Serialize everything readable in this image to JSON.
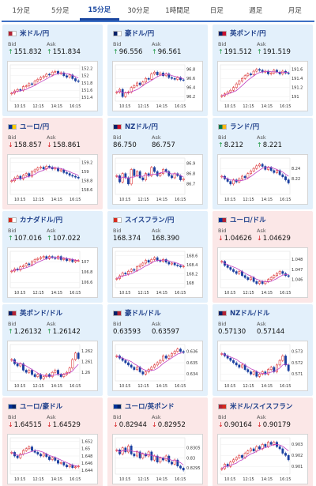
{
  "tabs": [
    {
      "label": "1分足",
      "active": false
    },
    {
      "label": "5分足",
      "active": false
    },
    {
      "label": "15分足",
      "active": true
    },
    {
      "label": "30分足",
      "active": false
    },
    {
      "label": "1時間足",
      "active": false
    },
    {
      "label": "日足",
      "active": false
    },
    {
      "label": "週足",
      "active": false
    },
    {
      "label": "月足",
      "active": false
    }
  ],
  "labels": {
    "bid": "Bid",
    "ask": "Ask"
  },
  "colors": {
    "up": "#1a9641",
    "down": "#d7191c",
    "up_bg": "#e3f0fb",
    "down_bg": "#fbe7e7",
    "ma": "#c040c0"
  },
  "cards": [
    {
      "title": "米ドル/円",
      "flag": [
        "#b22234",
        "#ffffff"
      ],
      "bid": "151.832",
      "ask": "151.834",
      "dir": "up",
      "chart": {
        "x_ticks": [
          "10:15",
          "12:15",
          "14:15",
          "16:15"
        ],
        "y_ticks": [
          "152.2",
          "152",
          "151.8",
          "151.6",
          "151.4"
        ],
        "ylim": [
          151.3,
          152.3
        ],
        "closes": [
          151.52,
          151.58,
          151.62,
          151.6,
          151.7,
          151.72,
          151.78,
          151.76,
          151.85,
          151.9,
          151.95,
          151.98,
          152.04,
          152.02,
          152.1,
          152.12,
          152.06,
          152.08,
          152.0,
          151.96,
          152.02,
          151.92,
          151.86,
          151.84
        ]
      }
    },
    {
      "title": "豪ドル/円",
      "flag": [
        "#012169",
        "#ffffff"
      ],
      "bid": "96.556",
      "ask": "96.561",
      "dir": "up",
      "chart": {
        "x_ticks": [
          "10:15",
          "12:15",
          "14:15",
          "16:15"
        ],
        "y_ticks": [
          "96.8",
          "96.6",
          "96.4",
          "96.2"
        ],
        "ylim": [
          96.1,
          96.9
        ],
        "closes": [
          96.3,
          96.36,
          96.2,
          96.28,
          96.3,
          96.4,
          96.44,
          96.5,
          96.46,
          96.52,
          96.6,
          96.58,
          96.7,
          96.74,
          96.68,
          96.72,
          96.66,
          96.7,
          96.62,
          96.6,
          96.58,
          96.62,
          96.57,
          96.56
        ]
      }
    },
    {
      "title": "英ポンド/円",
      "flag": [
        "#012169",
        "#c8102e"
      ],
      "bid": "191.512",
      "ask": "191.519",
      "dir": "up",
      "chart": {
        "x_ticks": [
          "10:15",
          "12:15",
          "14:15",
          "16:15"
        ],
        "y_ticks": [
          "191.6",
          "191.4",
          "191.2",
          "191"
        ],
        "ylim": [
          190.9,
          191.7
        ],
        "closes": [
          191.02,
          191.06,
          191.1,
          191.14,
          191.2,
          191.28,
          191.34,
          191.4,
          191.46,
          191.5,
          191.48,
          191.56,
          191.6,
          191.58,
          191.54,
          191.56,
          191.5,
          191.52,
          191.58,
          191.54,
          191.5,
          191.56,
          191.52,
          191.51
        ]
      }
    },
    {
      "title": "ユーロ/円",
      "flag": [
        "#003399",
        "#ffcc00"
      ],
      "bid": "158.857",
      "ask": "158.861",
      "dir": "down",
      "chart": {
        "x_ticks": [
          "10:15",
          "12:15",
          "14:15",
          "16:15"
        ],
        "y_ticks": [
          "159.2",
          "159",
          "158.8",
          "158.6"
        ],
        "ylim": [
          158.5,
          159.3
        ],
        "closes": [
          158.8,
          158.86,
          158.9,
          158.84,
          158.92,
          158.96,
          158.9,
          159.0,
          159.04,
          159.08,
          159.1,
          159.06,
          159.12,
          159.1,
          159.06,
          159.08,
          159.02,
          159.04,
          158.98,
          158.96,
          158.92,
          158.9,
          158.88,
          158.86
        ]
      }
    },
    {
      "title": "NZドル/円",
      "flag": [
        "#012169",
        "#cc142b"
      ],
      "bid": "86.750",
      "ask": "86.757",
      "dir": "none",
      "chart": {
        "x_ticks": [
          "10:15",
          "12:15",
          "14:15",
          "16:15"
        ],
        "y_ticks": [
          "86.9",
          "86.8",
          "86.7"
        ],
        "ylim": [
          86.6,
          86.95
        ],
        "closes": [
          86.78,
          86.72,
          86.8,
          86.76,
          86.7,
          86.84,
          86.78,
          86.82,
          86.76,
          86.74,
          86.8,
          86.78,
          86.86,
          86.82,
          86.78,
          86.8,
          86.84,
          86.82,
          86.78,
          86.76,
          86.8,
          86.78,
          86.74,
          86.75
        ]
      }
    },
    {
      "title": "ランド/円",
      "flag": [
        "#007a4d",
        "#ffb612"
      ],
      "bid": "8.212",
      "ask": "8.221",
      "dir": "up",
      "chart": {
        "x_ticks": [
          "10:15",
          "12:15",
          "14:15",
          "16:15"
        ],
        "y_ticks": [
          "8.24",
          "8.22"
        ],
        "ylim": [
          8.19,
          8.26
        ],
        "closes": [
          8.225,
          8.22,
          8.215,
          8.21,
          8.218,
          8.214,
          8.22,
          8.225,
          8.222,
          8.23,
          8.235,
          8.24,
          8.245,
          8.248,
          8.244,
          8.238,
          8.242,
          8.236,
          8.232,
          8.236,
          8.228,
          8.224,
          8.218,
          8.212
        ]
      }
    },
    {
      "title": "カナダドル/円",
      "flag": [
        "#d52b1e",
        "#ffffff"
      ],
      "bid": "107.016",
      "ask": "107.022",
      "dir": "up",
      "chart": {
        "x_ticks": [
          "10:15",
          "12:15",
          "14:15",
          "16:15"
        ],
        "y_ticks": [
          "107",
          "106.8",
          "106.6"
        ],
        "ylim": [
          106.5,
          107.2
        ],
        "closes": [
          106.82,
          106.86,
          106.84,
          106.9,
          106.92,
          106.96,
          106.94,
          107.0,
          107.04,
          107.06,
          107.08,
          107.1,
          107.06,
          107.1,
          107.08,
          107.06,
          107.1,
          107.04,
          107.06,
          107.02,
          107.04,
          107.0,
          107.02,
          107.02
        ]
      }
    },
    {
      "title": "スイスフラン/円",
      "flag": [
        "#d52b1e",
        "#ffffff"
      ],
      "bid": "168.374",
      "ask": "168.390",
      "dir": "none",
      "chart": {
        "x_ticks": [
          "10:15",
          "12:15",
          "14:15",
          "16:15"
        ],
        "y_ticks": [
          "168.6",
          "168.4",
          "168.2",
          "168"
        ],
        "ylim": [
          167.9,
          168.7
        ],
        "closes": [
          168.1,
          168.16,
          168.22,
          168.2,
          168.26,
          168.3,
          168.28,
          168.36,
          168.4,
          168.44,
          168.5,
          168.46,
          168.52,
          168.56,
          168.5,
          168.48,
          168.52,
          168.46,
          168.42,
          168.44,
          168.4,
          168.38,
          168.36,
          168.37
        ]
      }
    },
    {
      "title": "ユーロ/ドル",
      "flag": [
        "#003399",
        "#b22234"
      ],
      "bid": "1.04626",
      "ask": "1.04629",
      "dir": "down",
      "chart": {
        "x_ticks": [
          "10:15",
          "12:15",
          "14:15",
          "16:15"
        ],
        "y_ticks": [
          "1.048",
          "1.047",
          "1.046"
        ],
        "ylim": [
          1.0452,
          1.0488
        ],
        "closes": [
          1.0478,
          1.0474,
          1.0472,
          1.047,
          1.0468,
          1.0466,
          1.0468,
          1.0464,
          1.0462,
          1.046,
          1.0462,
          1.0458,
          1.0456,
          1.0458,
          1.0456,
          1.0458,
          1.046,
          1.0462,
          1.0464,
          1.0466,
          1.0468,
          1.0466,
          1.0464,
          1.0463
        ]
      }
    },
    {
      "title": "英ポンド/ドル",
      "flag": [
        "#012169",
        "#b22234"
      ],
      "bid": "1.26132",
      "ask": "1.26142",
      "dir": "up",
      "chart": {
        "x_ticks": [
          "10:15",
          "12:15",
          "14:15",
          "16:15"
        ],
        "y_ticks": [
          "1.262",
          "1.261",
          "1.26"
        ],
        "ylim": [
          1.2592,
          1.2626
        ],
        "closes": [
          1.2612,
          1.2608,
          1.2606,
          1.2608,
          1.2602,
          1.26,
          1.2602,
          1.2598,
          1.2596,
          1.2598,
          1.2594,
          1.2596,
          1.2598,
          1.2596,
          1.26,
          1.2602,
          1.2598,
          1.2596,
          1.2598,
          1.26,
          1.2604,
          1.2612,
          1.2618,
          1.2613
        ]
      }
    },
    {
      "title": "豪ドル/ドル",
      "flag": [
        "#012169",
        "#b22234"
      ],
      "bid": "0.63593",
      "ask": "0.63597",
      "dir": "none",
      "chart": {
        "x_ticks": [
          "10:15",
          "12:15",
          "14:15",
          "16:15"
        ],
        "y_ticks": [
          "0.636",
          "0.635",
          "0.634"
        ],
        "ylim": [
          0.6334,
          0.6366
        ],
        "closes": [
          0.6356,
          0.6354,
          0.6352,
          0.635,
          0.6348,
          0.6346,
          0.6344,
          0.6346,
          0.6342,
          0.634,
          0.6342,
          0.6344,
          0.6346,
          0.6348,
          0.635,
          0.6352,
          0.6356,
          0.6354,
          0.6356,
          0.6358,
          0.636,
          0.6362,
          0.636,
          0.6359
        ]
      }
    },
    {
      "title": "NZドル/ドル",
      "flag": [
        "#012169",
        "#b22234"
      ],
      "bid": "0.57130",
      "ask": "0.57144",
      "dir": "none",
      "chart": {
        "x_ticks": [
          "10:15",
          "12:15",
          "14:15",
          "16:15"
        ],
        "y_ticks": [
          "0.573",
          "0.572",
          "0.571"
        ],
        "ylim": [
          0.5704,
          0.5736
        ],
        "closes": [
          0.5728,
          0.5726,
          0.5724,
          0.5722,
          0.572,
          0.5718,
          0.5716,
          0.5718,
          0.5714,
          0.5712,
          0.571,
          0.5712,
          0.5708,
          0.571,
          0.5712,
          0.571,
          0.5714,
          0.5716,
          0.5712,
          0.5718,
          0.5722,
          0.5726,
          0.5718,
          0.5713
        ]
      }
    },
    {
      "title": "ユーロ/豪ドル",
      "flag": [
        "#003399",
        "#012169"
      ],
      "bid": "1.64515",
      "ask": "1.64529",
      "dir": "down",
      "chart": {
        "x_ticks": [
          "10:15",
          "12:15",
          "14:15",
          "16:15"
        ],
        "y_ticks": [
          "1.652",
          "1.65",
          "1.648",
          "1.646",
          "1.644"
        ],
        "ylim": [
          1.643,
          1.653
        ],
        "closes": [
          1.649,
          1.648,
          1.6475,
          1.6485,
          1.6495,
          1.65,
          1.6505,
          1.6495,
          1.649,
          1.6485,
          1.648,
          1.6485,
          1.6478,
          1.647,
          1.6475,
          1.6468,
          1.646,
          1.6462,
          1.6455,
          1.645,
          1.6455,
          1.6448,
          1.645,
          1.6452
        ]
      }
    },
    {
      "title": "ユーロ/英ポンド",
      "flag": [
        "#003399",
        "#012169"
      ],
      "bid": "0.82944",
      "ask": "0.82952",
      "dir": "down",
      "chart": {
        "x_ticks": [
          "10:15",
          "12:15",
          "14:15",
          "16:15"
        ],
        "y_ticks": [
          "0.8305",
          "0.83",
          "0.8295"
        ],
        "ylim": [
          0.8292,
          0.831
        ],
        "closes": [
          0.8304,
          0.8302,
          0.8305,
          0.8303,
          0.8306,
          0.8302,
          0.8301,
          0.8303,
          0.83,
          0.8302,
          0.8301,
          0.8303,
          0.8299,
          0.8301,
          0.8298,
          0.83,
          0.8299,
          0.8301,
          0.8298,
          0.8297,
          0.8299,
          0.8296,
          0.8295,
          0.8294
        ]
      }
    },
    {
      "title": "米ドル/スイスフラン",
      "flag": [
        "#b22234",
        "#d52b1e"
      ],
      "bid": "0.90164",
      "ask": "0.90179",
      "dir": "down",
      "chart": {
        "x_ticks": [
          "10:15",
          "12:15",
          "14:15",
          "16:15"
        ],
        "y_ticks": [
          "0.903",
          "0.902",
          "0.901"
        ],
        "ylim": [
          0.9003,
          0.9036
        ],
        "closes": [
          0.9008,
          0.9012,
          0.901,
          0.9014,
          0.9016,
          0.9018,
          0.902,
          0.9018,
          0.9022,
          0.9024,
          0.9026,
          0.9024,
          0.9028,
          0.9026,
          0.903,
          0.9028,
          0.9032,
          0.903,
          0.9032,
          0.9028,
          0.9026,
          0.9022,
          0.902,
          0.9016
        ]
      }
    }
  ]
}
